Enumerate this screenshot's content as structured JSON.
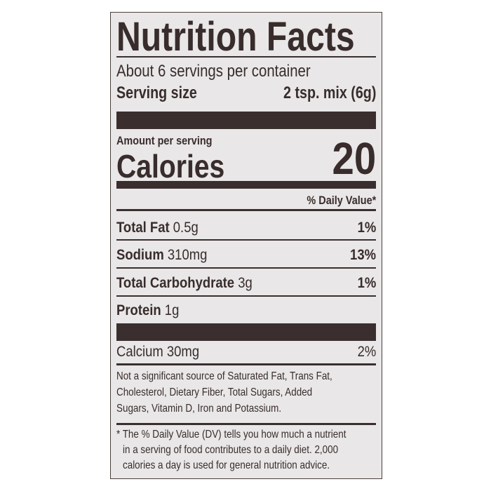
{
  "title": "Nutrition Facts",
  "servings_per_container": "About 6 servings per container",
  "serving_size": {
    "label": "Serving size",
    "value": "2 tsp. mix (6g)"
  },
  "amount_per_serving": "Amount per serving",
  "calories": {
    "label": "Calories",
    "value": "20"
  },
  "daily_value_header": "% Daily Value*",
  "nutrients": [
    {
      "name": "Total Fat",
      "amount": "0.5g",
      "dv": "1%"
    },
    {
      "name": "Sodium",
      "amount": "310mg",
      "dv": "13%"
    },
    {
      "name": "Total Carbohydrate",
      "amount": "3g",
      "dv": "1%"
    },
    {
      "name": "Protein",
      "amount": "1g",
      "dv": ""
    }
  ],
  "vitamins": [
    {
      "name": "Calcium 30mg",
      "dv": "2%"
    }
  ],
  "not_significant": [
    "Not a significant source of Saturated Fat, Trans Fat,",
    "Cholesterol, Dietary Fiber, Total Sugars, Added",
    "Sugars, Vitamin D, Iron and Potassium."
  ],
  "footnote": [
    "* The % Daily Value (DV) tells you how much a nutrient",
    "in a serving of food contributes to a daily diet. 2,000",
    "calories a day is used for general nutrition advice."
  ],
  "colors": {
    "ink": "#382d2c",
    "label_background": "#e9e7e7"
  }
}
